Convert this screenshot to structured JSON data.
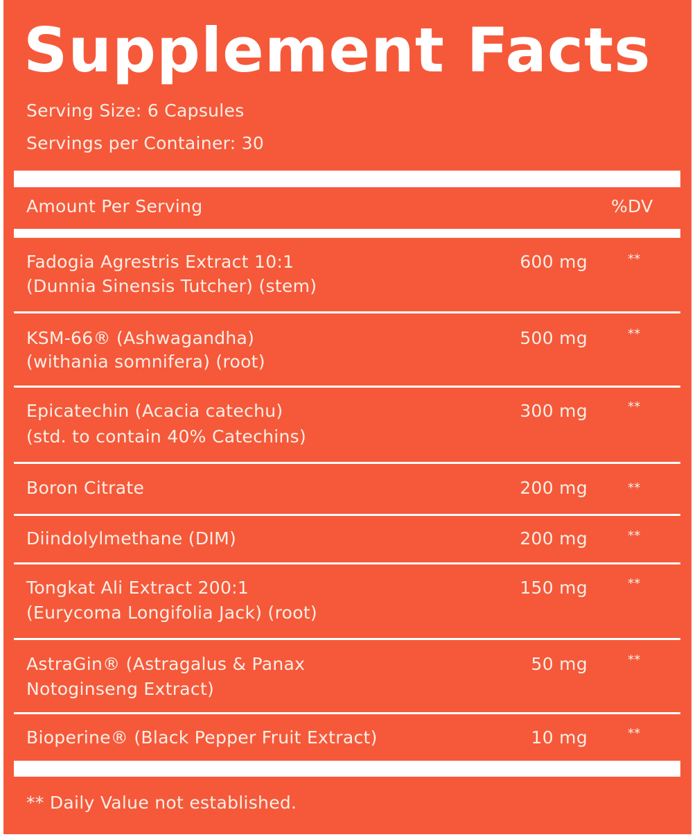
{
  "title": "Supplement Facts",
  "serving_size": "Serving Size: 6 Capsules",
  "servings_per_container": "Servings per Container: 30",
  "header": {
    "amount": "Amount Per Serving",
    "dv": "%DV"
  },
  "ingredients": [
    {
      "name": "Fadogia Agrestris Extract 10:1",
      "detail": "(Dunnia Sinensis Tutcher) (stem)",
      "amount": "600 mg",
      "dv": "**"
    },
    {
      "name": "KSM-66® (Ashwagandha)",
      "detail": "(withania somnifera) (root)",
      "amount": "500 mg",
      "dv": "**"
    },
    {
      "name": "Epicatechin (Acacia catechu)",
      "detail": "(std. to contain 40% Catechins)",
      "amount": "300 mg",
      "dv": "**"
    },
    {
      "name": "Boron Citrate",
      "amount": "200 mg",
      "dv": "**"
    },
    {
      "name": "Diindolylmethane (DIM)",
      "amount": "200 mg",
      "dv": "**"
    },
    {
      "name": "Tongkat Ali Extract 200:1",
      "detail": "(Eurycoma Longifolia Jack) (root)",
      "amount": "150 mg",
      "dv": "**"
    },
    {
      "name": "AstraGin® (Astragalus & Panax",
      "detail": "Notoginseng Extract)",
      "amount": "50 mg",
      "dv": "**"
    },
    {
      "name": "Bioperine® (Black Pepper Fruit Extract)",
      "amount": "10 mg",
      "dv": "**"
    }
  ],
  "footnote": "** Daily Value not established.",
  "colors": {
    "background": "#f5593a",
    "text": "#fbeee6",
    "rules": "#ffffff"
  }
}
